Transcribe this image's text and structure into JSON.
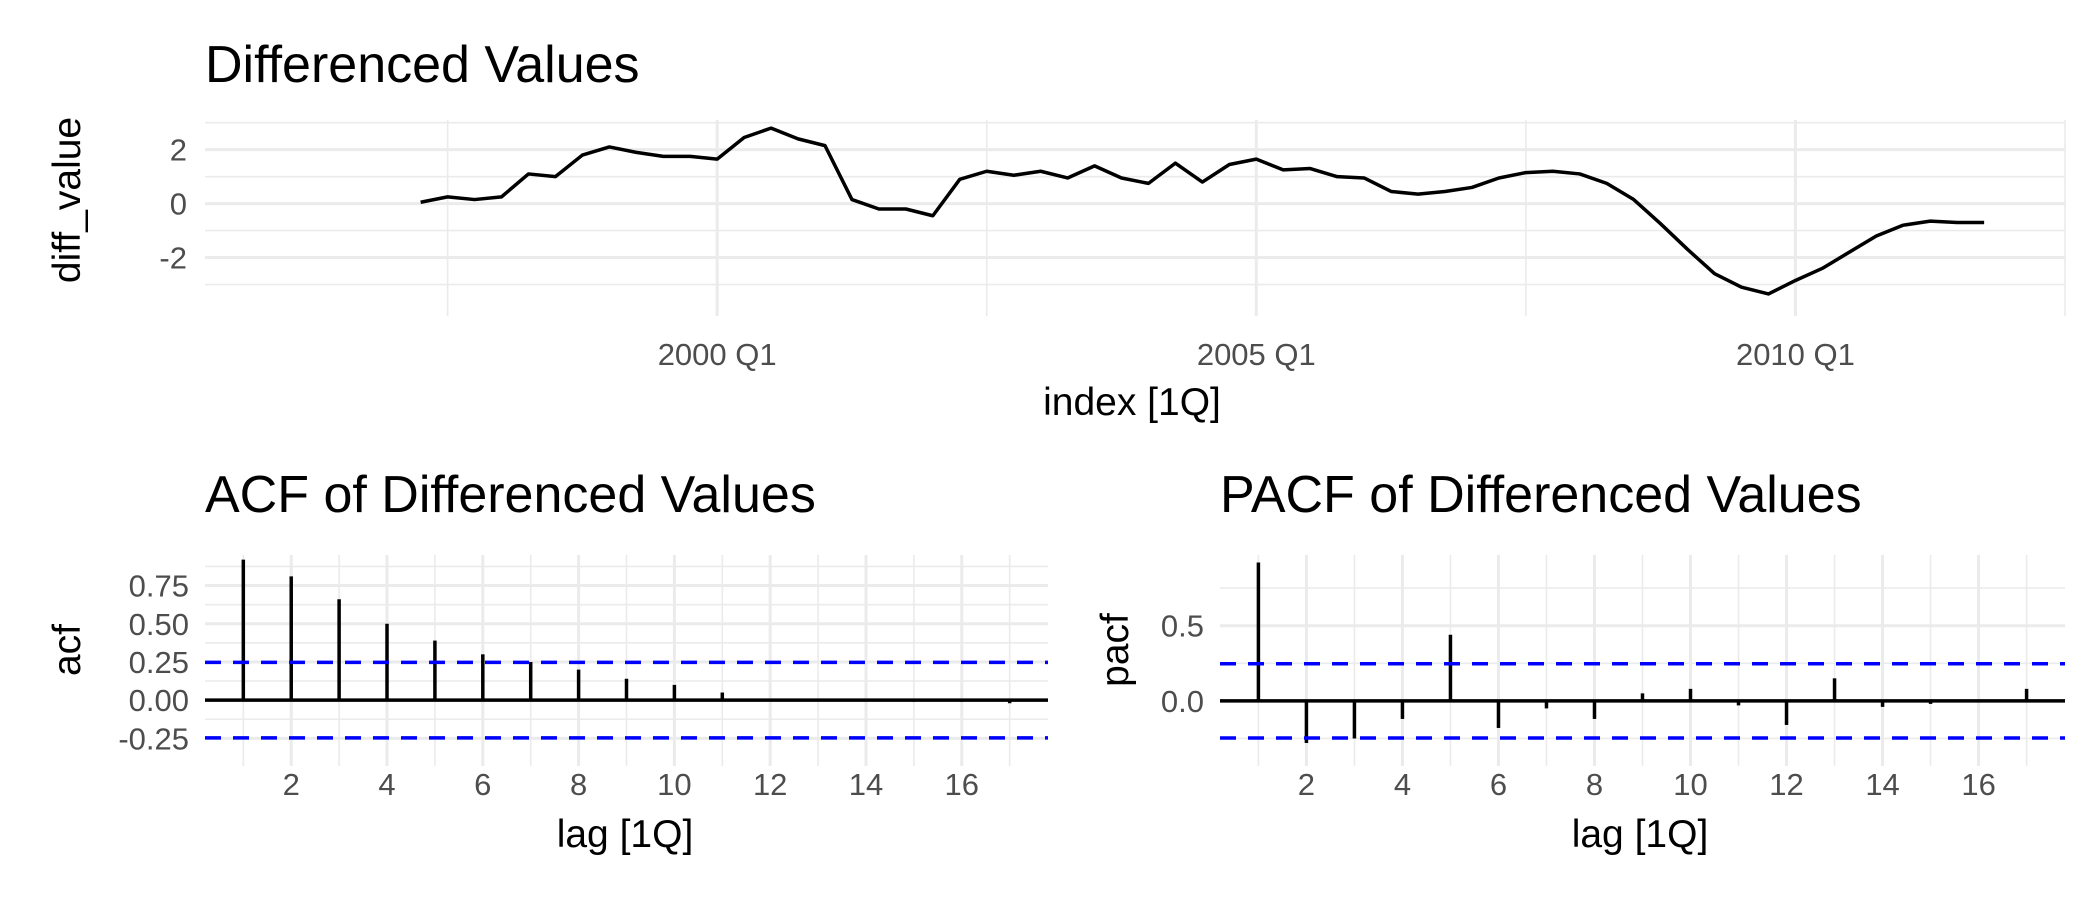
{
  "chart_data": [
    {
      "id": "ts",
      "type": "line",
      "title": "Differenced Values",
      "xlabel": "index [1Q]",
      "ylabel": "diff_value",
      "x_tick_labels": [
        "2000 Q1",
        "2005 Q1",
        "2010 Q1"
      ],
      "x_tick_values": [
        2000.0,
        2005.0,
        2010.0
      ],
      "y_tick_labels": [
        "2",
        "0",
        "-2"
      ],
      "y_tick_values": [
        2,
        0,
        -2
      ],
      "xlim": [
        1995.25,
        2012.5
      ],
      "ylim": [
        -3.5,
        3.1
      ],
      "grid": true,
      "line_color": "#000000",
      "x": [
        1997.25,
        1997.5,
        1997.75,
        1998.0,
        1998.25,
        1998.5,
        1998.75,
        1999.0,
        1999.25,
        1999.5,
        1999.75,
        2000.0,
        2000.25,
        2000.5,
        2000.75,
        2001.0,
        2001.25,
        2001.5,
        2001.75,
        2002.0,
        2002.25,
        2002.5,
        2002.75,
        2003.0,
        2003.25,
        2003.5,
        2003.75,
        2004.0,
        2004.25,
        2004.5,
        2004.75,
        2005.0,
        2005.25,
        2005.5,
        2005.75,
        2006.0,
        2006.25,
        2006.5,
        2006.75,
        2007.0,
        2007.25,
        2007.5,
        2007.75,
        2008.0,
        2008.25,
        2008.5,
        2008.75,
        2009.0,
        2009.25,
        2009.5,
        2009.75,
        2010.0,
        2010.25,
        2010.5,
        2010.75,
        2011.0,
        2011.25,
        2011.5,
        2011.75
      ],
      "values": [
        0.05,
        0.25,
        0.15,
        0.25,
        1.1,
        1.0,
        1.8,
        2.1,
        1.9,
        1.75,
        1.75,
        1.65,
        2.45,
        2.8,
        2.4,
        2.15,
        0.15,
        -0.2,
        -0.2,
        -0.45,
        0.9,
        1.2,
        1.05,
        1.2,
        0.95,
        1.4,
        0.95,
        0.75,
        1.5,
        0.8,
        1.45,
        1.65,
        1.25,
        1.3,
        1.0,
        0.95,
        0.45,
        0.35,
        0.45,
        0.6,
        0.95,
        1.15,
        1.2,
        1.1,
        0.75,
        0.15,
        -0.75,
        -1.7,
        -2.6,
        -3.1,
        -3.35,
        -2.85,
        -2.4,
        -1.8,
        -1.2,
        -0.8,
        -0.65,
        -0.7,
        -0.7
      ]
    },
    {
      "id": "acf",
      "type": "bar",
      "title": "ACF of Differenced Values",
      "xlabel": "lag [1Q]",
      "ylabel": "acf",
      "x_tick_labels": [
        "2",
        "4",
        "6",
        "8",
        "10",
        "12",
        "14",
        "16"
      ],
      "x_tick_values": [
        2,
        4,
        6,
        8,
        10,
        12,
        14,
        16
      ],
      "y_tick_labels": [
        "0.75",
        "0.50",
        "0.25",
        "0.00",
        "-0.25"
      ],
      "y_tick_values": [
        0.75,
        0.5,
        0.25,
        0.0,
        -0.25
      ],
      "xlim": [
        0.2,
        17.8
      ],
      "ylim": [
        -0.3,
        0.95
      ],
      "grid": true,
      "confidence_bound": 0.247,
      "ci_color": "#0000ff",
      "lags": [
        1,
        2,
        3,
        4,
        5,
        6,
        7,
        8,
        9,
        10,
        11,
        12,
        13,
        14,
        15,
        16,
        17
      ],
      "values": [
        0.92,
        0.81,
        0.66,
        0.5,
        0.39,
        0.3,
        0.25,
        0.2,
        0.14,
        0.1,
        0.05,
        0.01,
        0.0,
        0.0,
        -0.01,
        -0.01,
        -0.02
      ]
    },
    {
      "id": "pacf",
      "type": "bar",
      "title": "PACF of Differenced Values",
      "xlabel": "lag [1Q]",
      "ylabel": "pacf",
      "x_tick_labels": [
        "2",
        "4",
        "6",
        "8",
        "10",
        "12",
        "14",
        "16"
      ],
      "x_tick_values": [
        2,
        4,
        6,
        8,
        10,
        12,
        14,
        16
      ],
      "y_tick_labels": [
        "0.5",
        "0.0"
      ],
      "y_tick_values": [
        0.5,
        0.0
      ],
      "xlim": [
        0.2,
        17.8
      ],
      "ylim": [
        -0.3,
        0.97
      ],
      "grid": true,
      "confidence_bound": 0.247,
      "ci_color": "#0000ff",
      "lags": [
        1,
        2,
        3,
        4,
        5,
        6,
        7,
        8,
        9,
        10,
        11,
        12,
        13,
        14,
        15,
        16,
        17
      ],
      "values": [
        0.92,
        -0.28,
        -0.25,
        -0.12,
        0.44,
        -0.18,
        -0.05,
        -0.12,
        0.05,
        0.08,
        -0.03,
        -0.16,
        0.15,
        -0.04,
        -0.02,
        -0.01,
        0.08
      ]
    }
  ]
}
